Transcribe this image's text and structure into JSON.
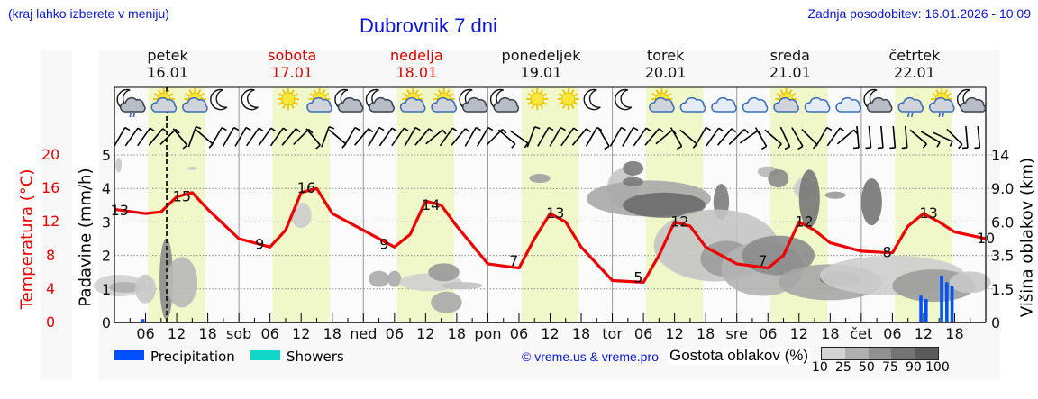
{
  "header": {
    "region_hint": "(kraj lahko izberete v meniju)",
    "title": "Dubrovnik 7 dni",
    "last_update": "Zadnja posodobitev: 16.01.2026 - 10:09"
  },
  "days": [
    {
      "name": "petek",
      "date": "16.01",
      "weekend": false
    },
    {
      "name": "sobota",
      "date": "17.01",
      "weekend": true
    },
    {
      "name": "nedelja",
      "date": "18.01",
      "weekend": true
    },
    {
      "name": "ponedeljek",
      "date": "19.01",
      "weekend": false
    },
    {
      "name": "torek",
      "date": "20.01",
      "weekend": false
    },
    {
      "name": "sreda",
      "date": "21.01",
      "weekend": false
    },
    {
      "name": "četrtek",
      "date": "22.01",
      "weekend": false
    }
  ],
  "axes": {
    "temp_label": "Temperatura (°C)",
    "precip_label": "Padavine (mm/h)",
    "cloud_label": "Višina oblakov (km)",
    "temp_ticks": [
      "20",
      "16",
      "12",
      "8",
      "4",
      "0"
    ],
    "precip_ticks": [
      "5",
      "4",
      "3",
      "2",
      "1",
      "0"
    ],
    "cloud_ticks": [
      "14",
      "9.0",
      "6.0",
      "3.5",
      "1.5",
      "0"
    ],
    "x_ticks": [
      "06",
      "12",
      "18",
      "sob",
      "06",
      "12",
      "18",
      "ned",
      "06",
      "12",
      "18",
      "pon",
      "06",
      "12",
      "18",
      "tor",
      "06",
      "12",
      "18",
      "sre",
      "06",
      "12",
      "18",
      "čet",
      "06",
      "12",
      "18"
    ]
  },
  "legend": {
    "precipitation": "Precipitation",
    "showers": "Showers",
    "precip_color": "#0050ff",
    "showers_color": "#10d8c8",
    "copyright": "© vreme.us & vreme.pro",
    "cloud_density_label": "Gostota oblakov (%)",
    "cloud_density_ticks": [
      "10",
      "25",
      "50",
      "75",
      "90",
      "100"
    ],
    "cloud_density_colors": [
      "#d4d4d4",
      "#b0b0b0",
      "#909090",
      "#747474",
      "#5a5a5a"
    ]
  },
  "icons": [
    "moon-cloud-rain",
    "sun-cloud",
    "sun-cloud",
    "moon",
    "moon",
    "sun",
    "sun-cloud",
    "moon-cloud",
    "moon-cloud",
    "sun-cloud",
    "sun-cloud",
    "moon-cloud",
    "moon-cloud",
    "sun",
    "sun",
    "moon",
    "moon",
    "sun-cloud",
    "cloud",
    "cloud",
    "cloud",
    "sun-cloud",
    "cloud",
    "cloud",
    "moon-cloud",
    "cloud-rain",
    "sun-cloud-rain",
    "moon-cloud"
  ],
  "chart_data": {
    "type": "line",
    "title": "Dubrovnik 7 dni",
    "xlabel": "",
    "ylabel": "Temperatura (°C)",
    "ylim": [
      0,
      20
    ],
    "grid": true,
    "series": [
      {
        "name": "Temperatura (°C)",
        "color": "#ee0000",
        "x_hours": [
          0,
          6,
          9,
          12,
          15,
          18,
          24,
          30,
          33,
          36,
          39,
          42,
          48,
          54,
          57,
          60,
          63,
          66,
          72,
          78,
          81,
          84,
          87,
          90,
          96,
          102,
          105,
          108,
          111,
          114,
          120,
          126,
          129,
          132,
          135,
          138,
          144,
          150,
          153,
          156,
          159,
          162,
          168
        ],
        "values": [
          13.5,
          13,
          13.2,
          15,
          15.5,
          13.5,
          10,
          9,
          11,
          15.5,
          16,
          13,
          11,
          9,
          10.5,
          14.5,
          14,
          11.5,
          7,
          6.5,
          10,
          13,
          12,
          9,
          5,
          4.8,
          8,
          12,
          11.5,
          9,
          7,
          6.5,
          8,
          12,
          11,
          9.5,
          8.5,
          8.3,
          11.5,
          13,
          12,
          10.8,
          10
        ]
      },
      {
        "name": "Precipitation (mm/h)",
        "color": "#0050ff",
        "x_hours": [
          5.5,
          155.5,
          156.5,
          159.5,
          160.5,
          161.5
        ],
        "values": [
          0.1,
          0.8,
          0.7,
          1.4,
          1.2,
          1.1
        ]
      }
    ],
    "temp_labels": [
      {
        "text": "13",
        "hour": 1
      },
      {
        "text": "15",
        "hour": 13
      },
      {
        "text": "9",
        "hour": 28
      },
      {
        "text": "16",
        "hour": 37
      },
      {
        "text": "9",
        "hour": 52
      },
      {
        "text": "14",
        "hour": 61
      },
      {
        "text": "7",
        "hour": 77
      },
      {
        "text": "13",
        "hour": 85
      },
      {
        "text": "5",
        "hour": 101
      },
      {
        "text": "12",
        "hour": 109
      },
      {
        "text": "7",
        "hour": 125
      },
      {
        "text": "12",
        "hour": 133
      },
      {
        "text": "8",
        "hour": 149
      },
      {
        "text": "13",
        "hour": 157
      },
      {
        "text": "10",
        "hour": 168
      }
    ],
    "secondary_axes": {
      "precip_ylim": [
        0,
        5
      ],
      "cloud_height_ticks": [
        0,
        1.5,
        3.5,
        6.0,
        9.0,
        14
      ]
    },
    "current_time_marker_hour": 10,
    "legend_position": "bottom"
  }
}
